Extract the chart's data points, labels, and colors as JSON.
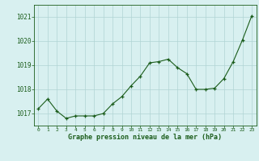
{
  "x": [
    0,
    1,
    2,
    3,
    4,
    5,
    6,
    7,
    8,
    9,
    10,
    11,
    12,
    13,
    14,
    15,
    16,
    17,
    18,
    19,
    20,
    21,
    22,
    23
  ],
  "y": [
    1017.2,
    1017.6,
    1017.1,
    1016.8,
    1016.9,
    1016.9,
    1016.9,
    1017.0,
    1017.4,
    1017.7,
    1018.15,
    1018.55,
    1019.1,
    1019.15,
    1019.25,
    1018.9,
    1018.65,
    1018.0,
    1018.0,
    1018.05,
    1018.45,
    1019.15,
    1020.05,
    1021.05
  ],
  "line_color": "#1a5c1a",
  "marker": "+",
  "marker_size": 3,
  "marker_color": "#1a5c1a",
  "bg_color": "#d8f0f0",
  "grid_color": "#b0d4d4",
  "xlabel": "Graphe pression niveau de la mer (hPa)",
  "xlabel_color": "#1a5c1a",
  "tick_color": "#1a5c1a",
  "ylim": [
    1016.5,
    1021.5
  ],
  "yticks": [
    1017,
    1018,
    1019,
    1020,
    1021
  ],
  "xticks": [
    0,
    1,
    2,
    3,
    4,
    5,
    6,
    7,
    8,
    9,
    10,
    11,
    12,
    13,
    14,
    15,
    16,
    17,
    18,
    19,
    20,
    21,
    22,
    23
  ]
}
